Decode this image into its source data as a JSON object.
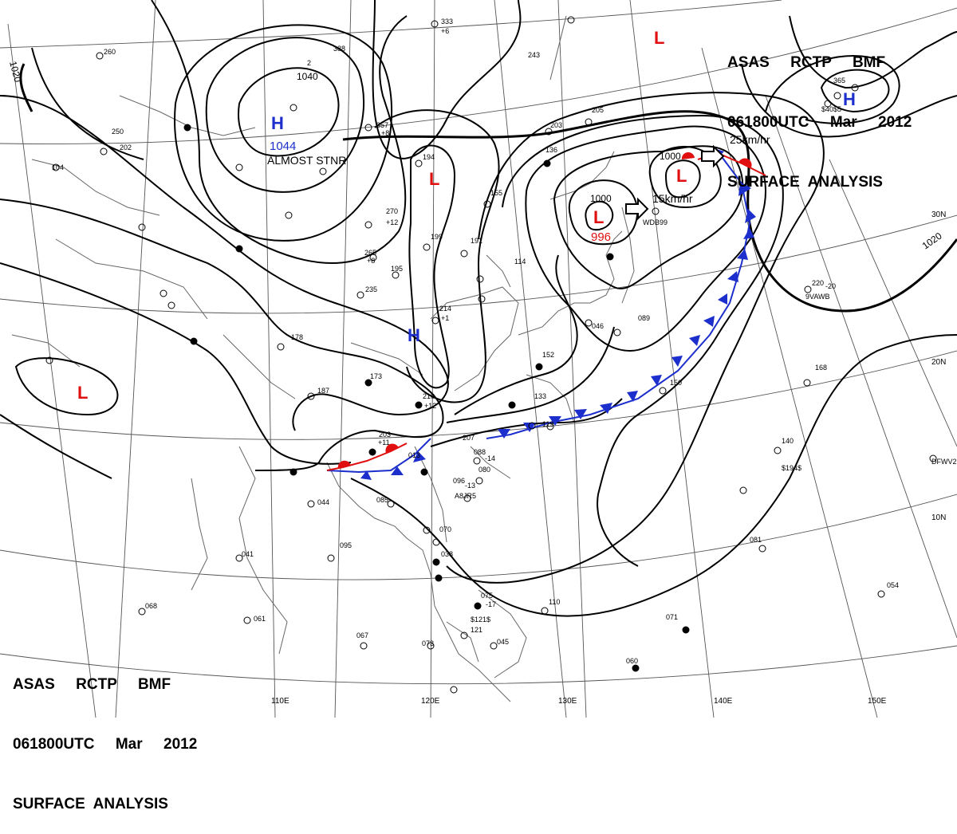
{
  "header_top_right": {
    "line1": "ASAS     RCTP     BMF",
    "line2": "061800UTC     Mar     2012",
    "line3": "SURFACE  ANALYSIS"
  },
  "header_bottom_left": {
    "line1": "ASAS     RCTP     BMF",
    "line2": "061800UTC     Mar     2012",
    "line3": "SURFACE  ANALYSIS"
  },
  "longitude_labels": [
    "110E",
    "120E",
    "130E",
    "140E",
    "150E"
  ],
  "latitude_labels": [
    "30N",
    "20N",
    "10N"
  ],
  "isobar_labels": [
    "1020",
    "1040",
    "1000",
    "1000",
    "1020"
  ],
  "pressure_centers": [
    {
      "type": "H",
      "value": "1044",
      "note": "ALMOST STNR",
      "color": "#1c2fcc"
    },
    {
      "type": "H",
      "value": "",
      "note": "",
      "color": "#1c2fcc"
    },
    {
      "type": "H",
      "value": "",
      "note": "",
      "color": "#1c2fcc"
    },
    {
      "type": "L",
      "value": "996",
      "note": "15km/hr",
      "color": "#e01010"
    },
    {
      "type": "L",
      "value": "",
      "note": "25km/hr",
      "color": "#e01010"
    },
    {
      "type": "L",
      "value": "",
      "note": "",
      "color": "#e01010"
    },
    {
      "type": "L",
      "value": "",
      "note": "",
      "color": "#e01010"
    },
    {
      "type": "L",
      "value": "",
      "note": "",
      "color": "#e01010"
    }
  ],
  "colors": {
    "high": "#1c2fcc",
    "low": "#e01010",
    "cold_front": "#1c2fcc",
    "warm_front": "#e01010",
    "isobar": "#000000",
    "grid": "#555555",
    "coast": "#666666"
  },
  "station_samples": [
    "333",
    "+6",
    "388",
    "2",
    "250",
    "202",
    "104",
    "260",
    "357",
    "+8",
    "194",
    "203",
    "205",
    "136",
    "243",
    "155",
    "199",
    "191",
    "270",
    "+12",
    "265",
    "+8",
    "235",
    "195",
    "214",
    "+1",
    "173",
    "178",
    "187",
    "210",
    "+12",
    "203",
    "+11",
    "013",
    "207",
    "133",
    "119",
    "085",
    "088",
    "080",
    "096",
    "044",
    "070",
    "038",
    "075",
    "095",
    "041",
    "068",
    "061",
    "067",
    "073",
    "045",
    "110",
    "121",
    "071",
    "060",
    "054",
    "081",
    "140",
    "150",
    "168",
    "220",
    "365",
    "089",
    "114",
    "152",
    "046",
    "WDB99",
    "9VAWB",
    "A8JR5",
    "DFWV2",
    "$194$",
    "$121$",
    "$40$5",
    "-20",
    "-17",
    "-14",
    "-13"
  ]
}
